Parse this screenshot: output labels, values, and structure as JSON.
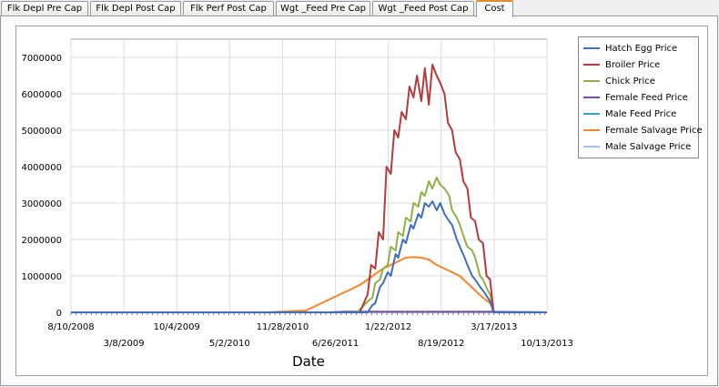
{
  "tabs": [
    {
      "label": "Flk Depl Pre Cap",
      "active": false
    },
    {
      "label": "Flk Depl Post Cap",
      "active": false
    },
    {
      "label": "Flk Perf Post Cap",
      "active": false
    },
    {
      "label": "Wgt _Feed Pre Cap",
      "active": false
    },
    {
      "label": "Wgt _Feed Post Cap",
      "active": false
    },
    {
      "label": "Cost",
      "active": true
    }
  ],
  "chart_data": {
    "type": "line",
    "title": "",
    "xlabel": "Date",
    "ylabel": "",
    "ylim": [
      0,
      7500000
    ],
    "xlim": [
      "2008-08-10",
      "2013-10-13"
    ],
    "yticks": [
      "0",
      "1000000",
      "2000000",
      "3000000",
      "4000000",
      "5000000",
      "6000000",
      "7000000"
    ],
    "xticks_upper": [
      "8/10/2008",
      "10/4/2009",
      "11/28/2010",
      "1/22/2012",
      "3/17/2013"
    ],
    "xticks_lower": [
      "3/8/2009",
      "5/2/2010",
      "6/26/2011",
      "8/19/2012",
      "10/13/2013"
    ],
    "grid": true,
    "legend_position": "right",
    "series": [
      {
        "name": "Hatch Egg Price",
        "color": "#3f6ebf",
        "x": [
          "2008-08-10",
          "2011-06-01",
          "2011-08-01",
          "2011-09-20",
          "2011-10-15",
          "2011-11-01",
          "2011-11-20",
          "2011-12-01",
          "2011-12-20",
          "2012-01-01",
          "2012-01-20",
          "2012-02-01",
          "2012-02-20",
          "2012-03-01",
          "2012-03-20",
          "2012-04-01",
          "2012-04-20",
          "2012-05-01",
          "2012-05-20",
          "2012-06-01",
          "2012-06-15",
          "2012-07-01",
          "2012-07-15",
          "2012-08-01",
          "2012-08-15",
          "2012-09-01",
          "2012-09-20",
          "2012-10-01",
          "2012-10-20",
          "2012-11-01",
          "2012-11-20",
          "2012-12-01",
          "2012-12-20",
          "2013-01-01",
          "2013-01-20",
          "2013-02-01",
          "2013-02-20",
          "2013-03-01",
          "2013-03-15",
          "2013-10-13"
        ],
        "y": [
          0,
          0,
          0,
          0,
          0,
          0,
          200000,
          250000,
          700000,
          800000,
          1100000,
          1000000,
          1600000,
          1500000,
          2000000,
          1900000,
          2400000,
          2300000,
          2700000,
          2600000,
          3000000,
          2900000,
          3050000,
          2800000,
          3000000,
          2700000,
          2500000,
          2400000,
          2000000,
          1800000,
          1500000,
          1300000,
          1000000,
          900000,
          700000,
          600000,
          400000,
          300000,
          0,
          0
        ]
      },
      {
        "name": "Broiler Price",
        "color": "#b33c3c",
        "x": [
          "2008-08-10",
          "2011-09-01",
          "2011-10-01",
          "2011-11-01",
          "2011-11-15",
          "2011-12-01",
          "2011-12-15",
          "2012-01-01",
          "2012-01-15",
          "2012-02-01",
          "2012-02-15",
          "2012-03-01",
          "2012-03-15",
          "2012-04-01",
          "2012-04-15",
          "2012-05-01",
          "2012-05-15",
          "2012-06-01",
          "2012-06-15",
          "2012-07-01",
          "2012-07-15",
          "2012-08-01",
          "2012-08-15",
          "2012-09-01",
          "2012-09-15",
          "2012-10-01",
          "2012-10-15",
          "2012-11-01",
          "2012-11-15",
          "2012-12-01",
          "2012-12-15",
          "2013-01-01",
          "2013-01-15",
          "2013-02-01",
          "2013-02-15",
          "2013-03-01",
          "2013-03-15",
          "2013-10-13"
        ],
        "y": [
          0,
          0,
          0,
          500000,
          1300000,
          1200000,
          2200000,
          2000000,
          4000000,
          3800000,
          5000000,
          4800000,
          5500000,
          5300000,
          6200000,
          5900000,
          6500000,
          5800000,
          6700000,
          5700000,
          6800000,
          6500000,
          6300000,
          6000000,
          5200000,
          5000000,
          4400000,
          4200000,
          3600000,
          3400000,
          2600000,
          2500000,
          2000000,
          1900000,
          1000000,
          900000,
          0,
          0
        ]
      },
      {
        "name": "Chick Price",
        "color": "#8fb047",
        "x": [
          "2008-08-10",
          "2011-09-20",
          "2011-11-01",
          "2011-11-20",
          "2011-12-01",
          "2011-12-20",
          "2012-01-01",
          "2012-01-20",
          "2012-02-01",
          "2012-02-20",
          "2012-03-01",
          "2012-03-20",
          "2012-04-01",
          "2012-04-20",
          "2012-05-01",
          "2012-05-20",
          "2012-06-01",
          "2012-06-15",
          "2012-07-01",
          "2012-07-15",
          "2012-08-01",
          "2012-08-15",
          "2012-09-01",
          "2012-09-20",
          "2012-10-01",
          "2012-10-20",
          "2012-11-01",
          "2012-11-20",
          "2012-12-01",
          "2012-12-20",
          "2013-01-01",
          "2013-01-20",
          "2013-02-01",
          "2013-02-20",
          "2013-03-01",
          "2013-03-15",
          "2013-10-13"
        ],
        "y": [
          0,
          0,
          300000,
          400000,
          800000,
          900000,
          1200000,
          1300000,
          1800000,
          1700000,
          2200000,
          2100000,
          2600000,
          2500000,
          3000000,
          2900000,
          3300000,
          3200000,
          3600000,
          3400000,
          3700000,
          3500000,
          3400000,
          3200000,
          2800000,
          2600000,
          2400000,
          2000000,
          1800000,
          1700000,
          1500000,
          1000000,
          900000,
          600000,
          500000,
          0,
          0
        ]
      },
      {
        "name": "Female Feed Price",
        "color": "#7a4fa0",
        "x": [
          "2008-08-10",
          "2011-06-01",
          "2011-08-01",
          "2013-03-01",
          "2013-10-13"
        ],
        "y": [
          0,
          0,
          15000,
          15000,
          0
        ]
      },
      {
        "name": "Male Feed Price",
        "color": "#3ca0c4",
        "x": [
          "2008-08-10",
          "2011-08-15",
          "2011-09-15",
          "2013-03-15",
          "2013-10-13"
        ],
        "y": [
          0,
          0,
          10000,
          10000,
          0
        ]
      },
      {
        "name": "Female Salvage Price",
        "color": "#f5842a",
        "x": [
          "2008-08-10",
          "2010-10-01",
          "2011-03-01",
          "2011-04-01",
          "2011-05-01",
          "2011-06-01",
          "2011-07-01",
          "2011-08-01",
          "2011-09-01",
          "2011-10-01",
          "2011-11-01",
          "2011-12-01",
          "2012-01-01",
          "2012-02-01",
          "2012-03-01",
          "2012-04-01",
          "2012-05-01",
          "2012-06-01",
          "2012-07-01",
          "2012-08-01",
          "2012-09-01",
          "2012-10-01",
          "2012-11-01",
          "2012-12-01",
          "2013-01-01",
          "2013-02-01",
          "2013-03-01",
          "2013-03-20",
          "2013-10-13"
        ],
        "y": [
          0,
          0,
          50000,
          150000,
          250000,
          350000,
          450000,
          550000,
          650000,
          750000,
          900000,
          1050000,
          1200000,
          1300000,
          1400000,
          1500000,
          1520000,
          1500000,
          1450000,
          1300000,
          1200000,
          1100000,
          1000000,
          800000,
          600000,
          400000,
          250000,
          0,
          0
        ]
      },
      {
        "name": "Male Salvage Price",
        "color": "#9ec5e8",
        "x": [
          "2008-08-10",
          "2011-06-01",
          "2011-08-01",
          "2013-03-01",
          "2013-10-13"
        ],
        "y": [
          0,
          0,
          20000,
          20000,
          0
        ]
      }
    ]
  }
}
